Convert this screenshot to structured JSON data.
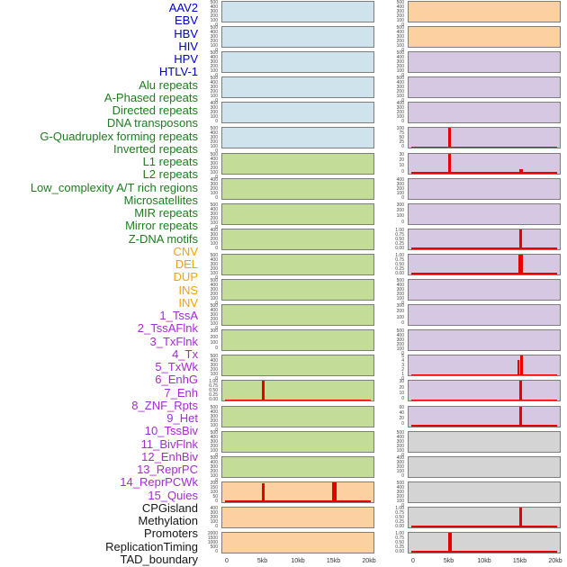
{
  "figure": {
    "title": "",
    "kind": "genomic feature track matrix around a 20kb locus"
  },
  "palette": {
    "label_blue": "#0000cc",
    "label_green": "#1e7d1e",
    "label_orange": "#f5a300",
    "label_purple": "#a62ad6",
    "label_black": "#151515",
    "fill_blue": "#cfe3ed",
    "fill_green": "#c3dc98",
    "fill_orange": "#fcd0a1",
    "fill_purple": "#d6c7e2",
    "fill_gray": "#d4d4d4",
    "panel_border": "#7d7d7d",
    "spike_red": "#e60000"
  },
  "chart_data": {
    "type": "area",
    "x_axis": {
      "ticks": [
        "0",
        "5kb",
        "10kb",
        "15kb",
        "20kb"
      ],
      "tick_kb": [
        0,
        5,
        10,
        15,
        20
      ],
      "range_kb": [
        0,
        20
      ]
    },
    "row_labels": [
      {
        "label": "AAV2",
        "color": "blue"
      },
      {
        "label": "EBV",
        "color": "blue"
      },
      {
        "label": "HBV",
        "color": "blue"
      },
      {
        "label": "HIV",
        "color": "blue"
      },
      {
        "label": "HPV",
        "color": "blue"
      },
      {
        "label": "HTLV-1",
        "color": "blue"
      },
      {
        "label": "Alu repeats",
        "color": "green"
      },
      {
        "label": "A-Phased repeats",
        "color": "green"
      },
      {
        "label": "Directed repeats",
        "color": "green"
      },
      {
        "label": "DNA transposons",
        "color": "green"
      },
      {
        "label": "G-Quadruplex forming repeats",
        "color": "green"
      },
      {
        "label": "Inverted repeats",
        "color": "green"
      },
      {
        "label": "L1 repeats",
        "color": "green"
      },
      {
        "label": "L2 repeats",
        "color": "green"
      },
      {
        "label": "Low_complexity A/T rich regions",
        "color": "green"
      },
      {
        "label": "Microsatellites",
        "color": "green"
      },
      {
        "label": "MIR repeats",
        "color": "green"
      },
      {
        "label": "Mirror repeats",
        "color": "green"
      },
      {
        "label": "Z-DNA motifs",
        "color": "green"
      },
      {
        "label": "CNV",
        "color": "orange"
      },
      {
        "label": "DEL",
        "color": "orange"
      },
      {
        "label": "DUP",
        "color": "orange"
      },
      {
        "label": "INS",
        "color": "orange"
      },
      {
        "label": "INV",
        "color": "orange"
      },
      {
        "label": "1_TssA",
        "color": "purple"
      },
      {
        "label": "2_TssAFlnk",
        "color": "purple"
      },
      {
        "label": "3_TxFlnk",
        "color": "purple"
      },
      {
        "label": "4_Tx",
        "color": "purple"
      },
      {
        "label": "5_TxWk",
        "color": "purple"
      },
      {
        "label": "6_EnhG",
        "color": "purple"
      },
      {
        "label": "7_Enh",
        "color": "purple"
      },
      {
        "label": "8_ZNF_Rpts",
        "color": "purple"
      },
      {
        "label": "9_Het",
        "color": "purple"
      },
      {
        "label": "10_TssBiv",
        "color": "purple"
      },
      {
        "label": "11_BivFlnk",
        "color": "purple"
      },
      {
        "label": "12_EnhBiv",
        "color": "purple"
      },
      {
        "label": "13_ReprPC",
        "color": "purple"
      },
      {
        "label": "14_ReprPCWk",
        "color": "purple"
      },
      {
        "label": "15_Quies",
        "color": "purple"
      },
      {
        "label": "CPGisland",
        "color": "black"
      },
      {
        "label": "Methylation",
        "color": "black"
      },
      {
        "label": "Promoters",
        "color": "black"
      },
      {
        "label": "ReplicationTiming",
        "color": "black"
      },
      {
        "label": "TAD_boundary",
        "color": "black"
      }
    ],
    "panels": [
      {
        "side": "left",
        "tracks": [
          {
            "label": "AAV2",
            "fill": "blue",
            "yticks": [
              "500",
              "400",
              "300",
              "200",
              "100",
              "0"
            ],
            "spikes": []
          },
          {
            "label": "EBV",
            "fill": "blue",
            "yticks": [
              "500",
              "400",
              "300",
              "200",
              "100",
              "0"
            ],
            "spikes": []
          },
          {
            "label": "HBV",
            "fill": "blue",
            "yticks": [
              "500",
              "400",
              "300",
              "200",
              "100",
              "0"
            ],
            "spikes": []
          },
          {
            "label": "HIV",
            "fill": "blue",
            "yticks": [
              "500",
              "400",
              "300",
              "200",
              "100",
              "0"
            ],
            "spikes": []
          },
          {
            "label": "HPV",
            "fill": "blue",
            "yticks": [
              "400",
              "300",
              "200",
              "100",
              "0"
            ],
            "spikes": []
          },
          {
            "label": "HTLV-1",
            "fill": "blue",
            "yticks": [
              "500",
              "400",
              "300",
              "200",
              "100",
              "0"
            ],
            "spikes": []
          },
          {
            "label": "Alu repeats",
            "fill": "green",
            "yticks": [
              "500",
              "400",
              "300",
              "200",
              "100",
              "0"
            ],
            "spikes": []
          },
          {
            "label": "A-Phased repeats",
            "fill": "green",
            "yticks": [
              "400",
              "300",
              "200",
              "100",
              "0"
            ],
            "spikes": []
          },
          {
            "label": "Directed repeats",
            "fill": "green",
            "yticks": [
              "500",
              "400",
              "300",
              "200",
              "100",
              "0"
            ],
            "spikes": []
          },
          {
            "label": "DNA transposons",
            "fill": "green",
            "yticks": [
              "400",
              "300",
              "200",
              "100",
              "0"
            ],
            "spikes": []
          },
          {
            "label": "G-Quadruplex forming repeats",
            "fill": "green",
            "yticks": [
              "500",
              "400",
              "300",
              "200",
              "100",
              "0"
            ],
            "spikes": []
          },
          {
            "label": "Inverted repeats",
            "fill": "green",
            "yticks": [
              "500",
              "400",
              "300",
              "200",
              "100",
              "0"
            ],
            "spikes": []
          },
          {
            "label": "L1 repeats",
            "fill": "green",
            "yticks": [
              "500",
              "400",
              "300",
              "200",
              "100",
              "0"
            ],
            "spikes": []
          },
          {
            "label": "L2 repeats",
            "fill": "green",
            "yticks": [
              "300",
              "200",
              "100",
              "0"
            ],
            "spikes": []
          },
          {
            "label": "Low_complexity A/T rich regions",
            "fill": "green",
            "yticks": [
              "500",
              "400",
              "300",
              "200",
              "100",
              "0"
            ],
            "spikes": []
          },
          {
            "label": "Microsatellites",
            "fill": "green",
            "yticks": [
              "1.00",
              "0.75",
              "0.50",
              "0.25",
              "0.00"
            ],
            "spikes": [
              {
                "x_kb": 5,
                "frac": 1.0,
                "w": 3
              }
            ]
          },
          {
            "label": "MIR repeats",
            "fill": "green",
            "yticks": [
              "500",
              "400",
              "300",
              "200",
              "100",
              "0"
            ],
            "spikes": []
          },
          {
            "label": "Mirror repeats",
            "fill": "green",
            "yticks": [
              "500",
              "400",
              "300",
              "200",
              "100",
              "0"
            ],
            "spikes": []
          },
          {
            "label": "Z-DNA motifs",
            "fill": "green",
            "yticks": [
              "500",
              "400",
              "300",
              "200",
              "100",
              "0"
            ],
            "spikes": []
          },
          {
            "label": "CNV",
            "fill": "orange",
            "yticks": [
              "200",
              "150",
              "100",
              "50",
              "0"
            ],
            "spikes": [
              {
                "x_kb": 5,
                "frac": 0.93,
                "w": 3
              },
              {
                "x_kb": 15,
                "frac": 1.0,
                "w": 5
              }
            ]
          },
          {
            "label": "DEL",
            "fill": "orange",
            "yticks": [
              "400",
              "300",
              "200",
              "100",
              "0"
            ],
            "spikes": []
          },
          {
            "label": "DUP",
            "fill": "orange",
            "yticks": [
              "2000",
              "1500",
              "1000",
              "500",
              "0"
            ],
            "spikes": []
          }
        ]
      },
      {
        "side": "right",
        "tracks": [
          {
            "label": "INS",
            "fill": "orange",
            "yticks": [
              "500",
              "400",
              "300",
              "200",
              "100",
              "0"
            ],
            "spikes": []
          },
          {
            "label": "INV",
            "fill": "orange",
            "yticks": [
              "500",
              "400",
              "300",
              "200",
              "100",
              "0"
            ],
            "spikes": []
          },
          {
            "label": "1_TssA",
            "fill": "purple",
            "yticks": [
              "500",
              "400",
              "300",
              "200",
              "100",
              "0"
            ],
            "spikes": []
          },
          {
            "label": "2_TssAFlnk",
            "fill": "purple",
            "yticks": [
              "500",
              "400",
              "300",
              "200",
              "100",
              "0"
            ],
            "spikes": []
          },
          {
            "label": "3_TxFlnk",
            "fill": "purple",
            "yticks": [
              "400",
              "300",
              "200",
              "100",
              "0"
            ],
            "spikes": []
          },
          {
            "label": "4_Tx",
            "fill": "purple",
            "yticks": [
              "100",
              "75",
              "50",
              "25",
              "0"
            ],
            "spikes": [
              {
                "x_kb": 5,
                "frac": 1.0,
                "w": 3
              },
              {
                "x_kb": 15,
                "frac": 0.08,
                "w": 5
              }
            ]
          },
          {
            "label": "5_TxWk",
            "fill": "purple",
            "yticks": [
              "30",
              "20",
              "10",
              "0"
            ],
            "spikes": [
              {
                "x_kb": 5,
                "frac": 0.97,
                "w": 3
              },
              {
                "x_kb": 15,
                "frac": 0.2,
                "w": 4
              }
            ]
          },
          {
            "label": "6_EnhG",
            "fill": "purple",
            "yticks": [
              "400",
              "300",
              "200",
              "100",
              "0"
            ],
            "spikes": []
          },
          {
            "label": "7_Enh",
            "fill": "purple",
            "yticks": [
              "300",
              "200",
              "100",
              "0"
            ],
            "spikes": []
          },
          {
            "label": "8_ZNF_Rpts",
            "fill": "purple",
            "yticks": [
              "1.00",
              "0.75",
              "0.50",
              "0.25",
              "0.00"
            ],
            "spikes": [
              {
                "x_kb": 15,
                "frac": 1.0,
                "w": 2.5
              }
            ]
          },
          {
            "label": "9_Het",
            "fill": "purple",
            "yticks": [
              "1.00",
              "0.75",
              "0.50",
              "0.25",
              "0.00"
            ],
            "spikes": [
              {
                "x_kb": 15,
                "frac": 1.0,
                "w": 4.5
              }
            ]
          },
          {
            "label": "10_TssBiv",
            "fill": "purple",
            "yticks": [
              "500",
              "400",
              "300",
              "200",
              "100",
              "0"
            ],
            "spikes": []
          },
          {
            "label": "11_BivFlnk",
            "fill": "purple",
            "yticks": [
              "300",
              "200",
              "100",
              "0"
            ],
            "spikes": []
          },
          {
            "label": "12_EnhBiv",
            "fill": "purple",
            "yticks": [
              "500",
              "400",
              "300",
              "200",
              "100",
              "0"
            ],
            "spikes": []
          },
          {
            "label": "13_ReprPC",
            "fill": "purple",
            "yticks": [
              "5",
              "4",
              "3",
              "2",
              "1",
              "0"
            ],
            "spikes": [
              {
                "x_kb": 14.7,
                "frac": 0.8,
                "w": 2
              },
              {
                "x_kb": 15.1,
                "frac": 1.0,
                "w": 3
              }
            ]
          },
          {
            "label": "14_ReprPCWk",
            "fill": "purple",
            "yticks": [
              "30",
              "20",
              "10",
              "0"
            ],
            "spikes": [
              {
                "x_kb": 15,
                "frac": 1.0,
                "w": 3.5
              }
            ]
          },
          {
            "label": "15_Quies",
            "fill": "purple",
            "yticks": [
              "60",
              "40",
              "20",
              "0"
            ],
            "spikes": [
              {
                "x_kb": 15,
                "frac": 1.0,
                "w": 3.5
              }
            ]
          },
          {
            "label": "CPGisland",
            "fill": "gray",
            "yticks": [
              "500",
              "400",
              "300",
              "200",
              "100",
              "0"
            ],
            "spikes": []
          },
          {
            "label": "Methylation",
            "fill": "gray",
            "yticks": [
              "400",
              "300",
              "200",
              "100",
              "0"
            ],
            "spikes": []
          },
          {
            "label": "Promoters",
            "fill": "gray",
            "yticks": [
              "500",
              "400",
              "300",
              "200",
              "100",
              "0"
            ],
            "spikes": []
          },
          {
            "label": "ReplicationTiming",
            "fill": "gray",
            "yticks": [
              "1.00",
              "0.75",
              "0.50",
              "0.25",
              "0.00"
            ],
            "spikes": [
              {
                "x_kb": 15,
                "frac": 1.0,
                "w": 3
              }
            ]
          },
          {
            "label": "TAD_boundary",
            "fill": "gray",
            "yticks": [
              "1.00",
              "0.75",
              "0.50",
              "0.25",
              "0.00"
            ],
            "spikes": [
              {
                "x_kb": 5,
                "frac": 1.0,
                "w": 4
              }
            ]
          }
        ]
      }
    ],
    "layout": {
      "tracks_per_panel": 22,
      "grid": "off",
      "legend": "none"
    }
  }
}
